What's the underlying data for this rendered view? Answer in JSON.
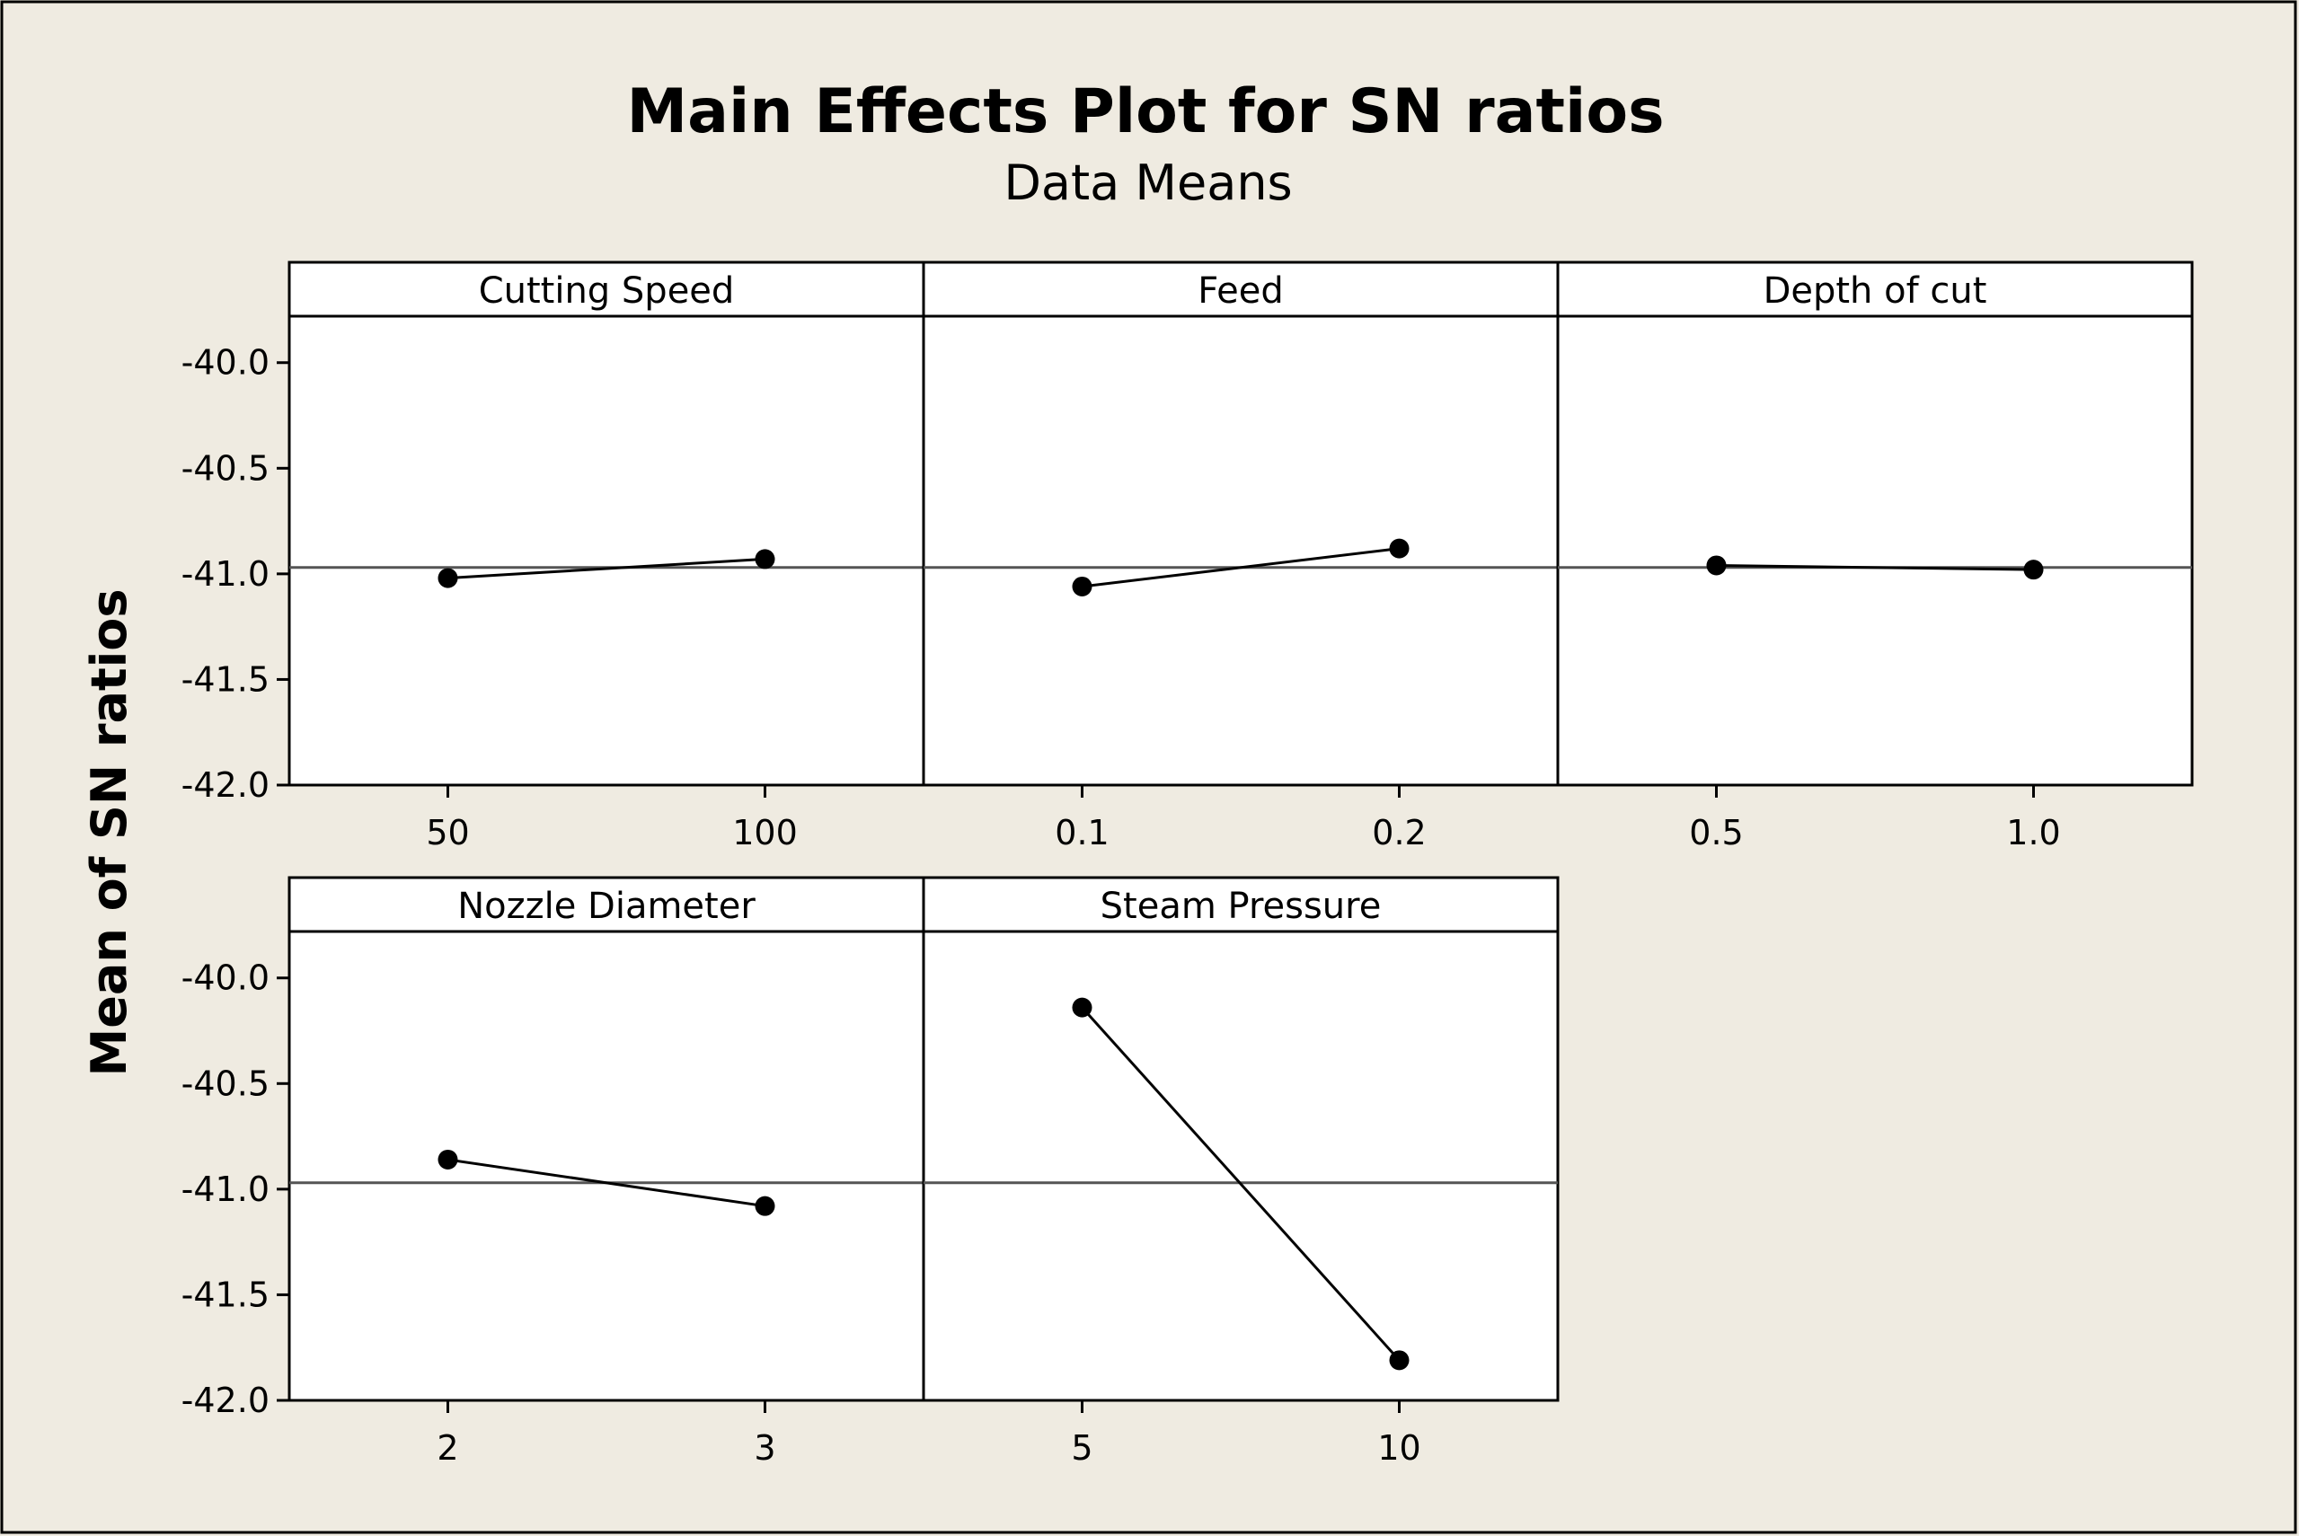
{
  "chart_data": {
    "type": "line",
    "title": "Main Effects Plot for SN ratios",
    "subtitle": "Data Means",
    "ylabel": "Mean of SN ratios",
    "ylim": [
      -42.0,
      -39.78
    ],
    "yticks": [
      "-40.0",
      "-40.5",
      "-41.0",
      "-41.5",
      "-42.0"
    ],
    "ytick_values": [
      -40.0,
      -40.5,
      -41.0,
      -41.5,
      -42.0
    ],
    "reference_mean": -40.97,
    "grid": false,
    "panels": [
      {
        "name": "Cutting Speed",
        "categories": [
          "50",
          "100"
        ],
        "values": [
          -41.02,
          -40.93
        ]
      },
      {
        "name": "Feed",
        "categories": [
          "0.1",
          "0.2"
        ],
        "values": [
          -41.06,
          -40.88
        ]
      },
      {
        "name": "Depth of cut",
        "categories": [
          "0.5",
          "1.0"
        ],
        "values": [
          -40.96,
          -40.98
        ]
      },
      {
        "name": "Nozzle Diameter",
        "categories": [
          "2",
          "3"
        ],
        "values": [
          -40.86,
          -41.08
        ]
      },
      {
        "name": "Steam Pressure",
        "categories": [
          "5",
          "10"
        ],
        "values": [
          -40.14,
          -41.81
        ]
      }
    ],
    "colors": {
      "background": "#efebe1",
      "plot_background": "#ffffff",
      "line": "#000000",
      "reference_line": "#555555"
    }
  }
}
